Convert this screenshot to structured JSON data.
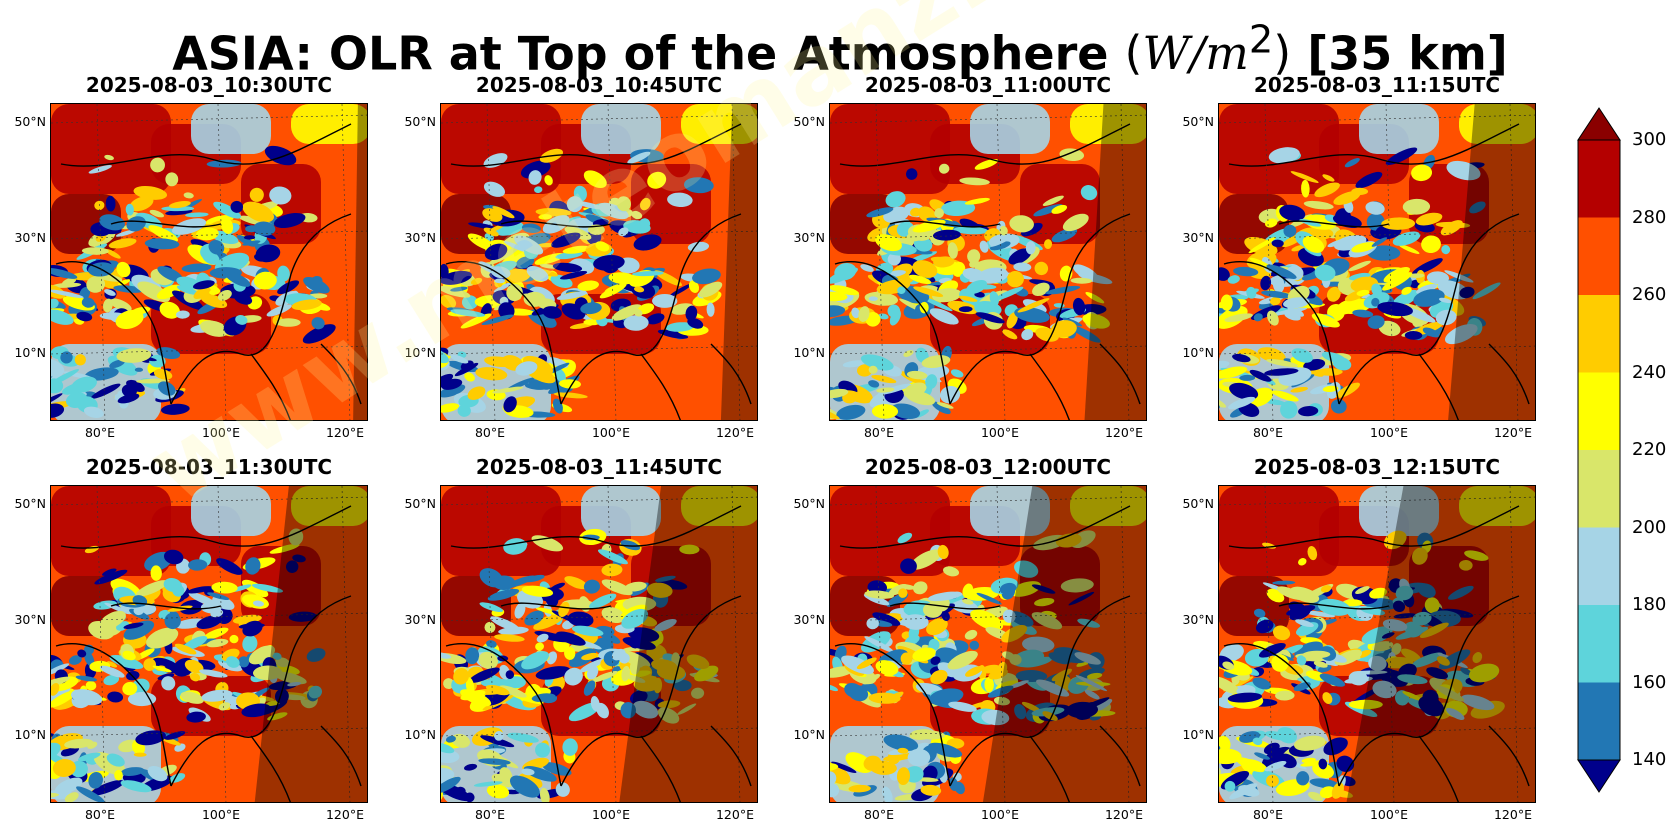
{
  "figure": {
    "title_main": "ASIA: OLR at Top of the Atmosphere",
    "title_unit_var": "W/m",
    "title_unit_exp": "2",
    "title_res": "[35 km]",
    "watermark": "www.meteomanz.com"
  },
  "panels": [
    {
      "time": "2025-08-03_10:30UTC",
      "night_frac": 0.05
    },
    {
      "time": "2025-08-03_10:45UTC",
      "night_frac": 0.12
    },
    {
      "time": "2025-08-03_11:00UTC",
      "night_frac": 0.2
    },
    {
      "time": "2025-08-03_11:15UTC",
      "night_frac": 0.28
    },
    {
      "time": "2025-08-03_11:30UTC",
      "night_frac": 0.36
    },
    {
      "time": "2025-08-03_11:45UTC",
      "night_frac": 0.44
    },
    {
      "time": "2025-08-03_12:00UTC",
      "night_frac": 0.52
    },
    {
      "time": "2025-08-03_12:15UTC",
      "night_frac": 0.6
    }
  ],
  "axes": {
    "lat_labels": [
      "50°N",
      "30°N",
      "10°N"
    ],
    "lon_labels": [
      "80°E",
      "100°E",
      "120°E"
    ]
  },
  "colorbar": {
    "labels": [
      "300",
      "280",
      "260",
      "240",
      "220",
      "200",
      "180",
      "160",
      "140"
    ],
    "colors": [
      "#b40000",
      "#ff5000",
      "#ffcc00",
      "#ffff00",
      "#d9e66a",
      "#a6d4e6",
      "#5ed4db",
      "#2277b4"
    ],
    "over_color": "#8a0000",
    "under_color": "#00008b"
  }
}
